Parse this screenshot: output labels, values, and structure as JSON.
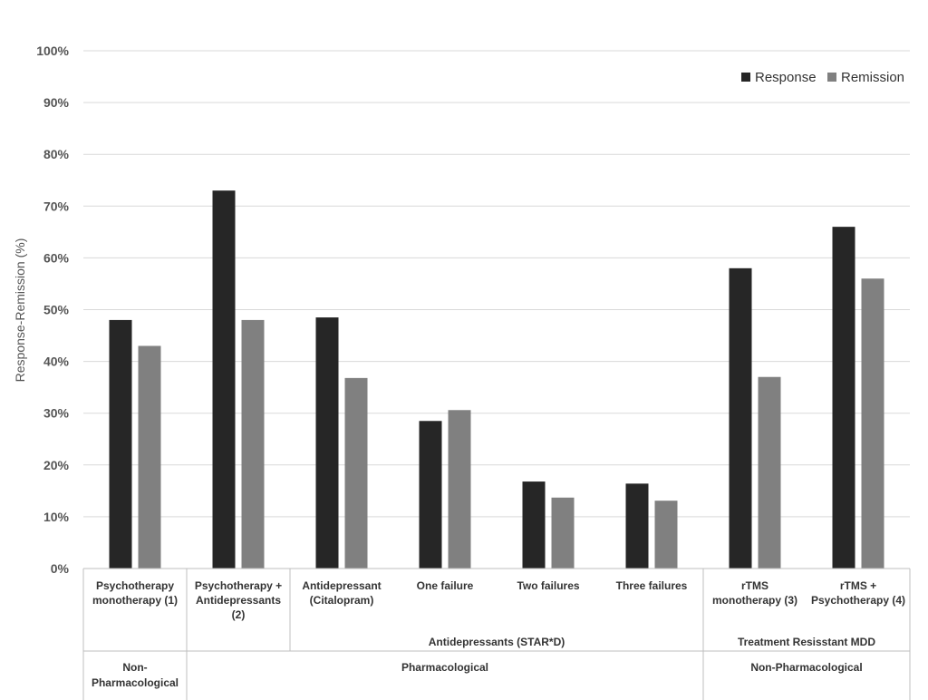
{
  "chart_data": {
    "type": "bar",
    "title": "",
    "xlabel": "",
    "ylabel": "Response-Remission (%)",
    "ylim": [
      0,
      100
    ],
    "y_ticks": [
      "0%",
      "10%",
      "20%",
      "30%",
      "40%",
      "50%",
      "60%",
      "70%",
      "80%",
      "90%",
      "100%"
    ],
    "grid": true,
    "legend_position": "top-right",
    "categories": [
      [
        "Psychotherapy",
        "monotherapy (1)"
      ],
      [
        "Psychotherapy +",
        "Antidepressants",
        "(2)"
      ],
      [
        "Antidepressant",
        "(Citalopram)"
      ],
      [
        "One failure"
      ],
      [
        "Two failures"
      ],
      [
        "Three failures"
      ],
      [
        "rTMS",
        "monotherapy (3)"
      ],
      [
        "rTMS +",
        "Psychotherapy (4)"
      ]
    ],
    "series": [
      {
        "name": "Response",
        "color": "#262626",
        "values": [
          48,
          73,
          48.5,
          28.5,
          16.8,
          16.4,
          58,
          66
        ]
      },
      {
        "name": "Remission",
        "color": "#808080",
        "values": [
          43,
          48,
          36.8,
          30.6,
          13.7,
          13.1,
          37,
          56
        ]
      }
    ],
    "subgroups": [
      {
        "label": "Antidepressants (STAR*D)",
        "start": 2,
        "end": 5
      },
      {
        "label": "Treatment Resisstant MDD",
        "start": 6,
        "end": 7
      }
    ],
    "groups": [
      {
        "label": [
          "Non-",
          "Pharmacological"
        ],
        "start": 0,
        "end": 0
      },
      {
        "label": [
          "Pharmacological"
        ],
        "start": 1,
        "end": 5
      },
      {
        "label": [
          "Non-Pharmacological"
        ],
        "start": 6,
        "end": 7
      }
    ]
  }
}
